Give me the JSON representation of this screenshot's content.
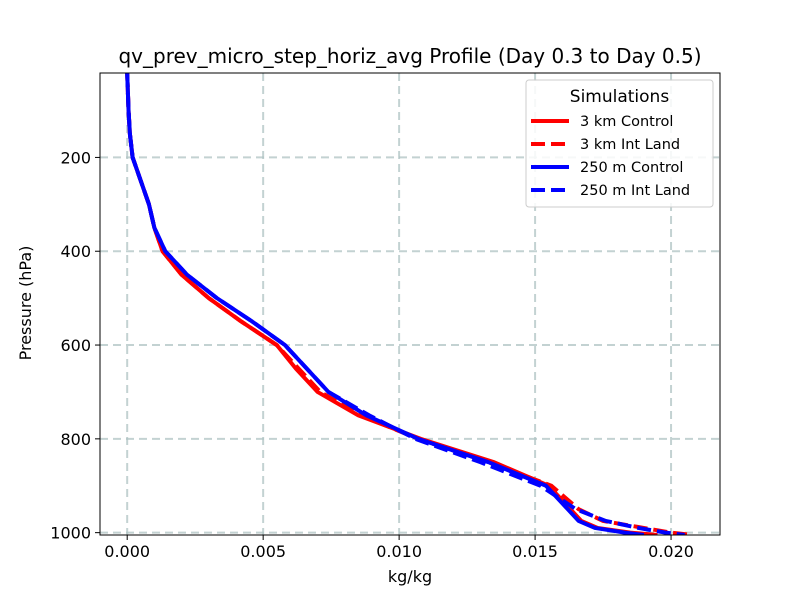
{
  "chart_data": {
    "type": "line",
    "title": "qv_prev_micro_step_horiz_avg Profile (Day 0.3 to Day 0.5)",
    "xlabel": "kg/kg",
    "ylabel": "Pressure (hPa)",
    "xlim": [
      -0.001,
      0.0218
    ],
    "ylim": [
      1005,
      20
    ],
    "y_inverted": true,
    "grid": true,
    "xticks": [
      0.0,
      0.005,
      0.01,
      0.015,
      0.02
    ],
    "xtick_labels": [
      "0.000",
      "0.005",
      "0.010",
      "0.015",
      "0.020"
    ],
    "yticks": [
      200,
      400,
      600,
      800,
      1000
    ],
    "ytick_labels": [
      "200",
      "400",
      "600",
      "800",
      "1000"
    ],
    "legend": {
      "title": "Simulations",
      "location": "upper right"
    },
    "y": [
      20,
      100,
      150,
      200,
      250,
      300,
      350,
      400,
      450,
      500,
      550,
      600,
      650,
      700,
      750,
      800,
      850,
      900,
      950,
      975,
      990,
      1000,
      1005
    ],
    "series": [
      {
        "name": "3 km Control",
        "color": "#ff0000",
        "linestyle": "solid",
        "x": [
          0.0,
          5e-05,
          0.0001,
          0.0002,
          0.0005,
          0.0008,
          0.001,
          0.0013,
          0.002,
          0.003,
          0.0042,
          0.0055,
          0.0062,
          0.007,
          0.0085,
          0.0108,
          0.0135,
          0.0155,
          0.0163,
          0.0167,
          0.0173,
          0.0185,
          0.0195
        ]
      },
      {
        "name": "3 km Int Land",
        "color": "#ff0000",
        "linestyle": "dashed",
        "x": [
          0.0,
          5e-05,
          0.0001,
          0.0002,
          0.0005,
          0.0008,
          0.001,
          0.0013,
          0.002,
          0.003,
          0.0042,
          0.0055,
          0.0063,
          0.0071,
          0.0086,
          0.0107,
          0.0133,
          0.0156,
          0.0166,
          0.0175,
          0.019,
          0.02,
          0.0208
        ]
      },
      {
        "name": "250 m Control",
        "color": "#0000ff",
        "linestyle": "solid",
        "x": [
          0.0,
          5e-05,
          0.0001,
          0.0002,
          0.0005,
          0.0008,
          0.001,
          0.0014,
          0.0022,
          0.0033,
          0.0046,
          0.0058,
          0.0066,
          0.0074,
          0.0088,
          0.0107,
          0.0133,
          0.0154,
          0.0162,
          0.0166,
          0.0172,
          0.0183,
          0.019
        ]
      },
      {
        "name": "250 m Int Land",
        "color": "#0000ff",
        "linestyle": "dashed",
        "x": [
          0.0,
          5e-05,
          0.0001,
          0.0002,
          0.0005,
          0.0008,
          0.001,
          0.0014,
          0.0022,
          0.0033,
          0.0046,
          0.0058,
          0.0066,
          0.0074,
          0.0089,
          0.0106,
          0.013,
          0.0152,
          0.0165,
          0.0176,
          0.0188,
          0.0198,
          0.0205
        ]
      }
    ]
  }
}
